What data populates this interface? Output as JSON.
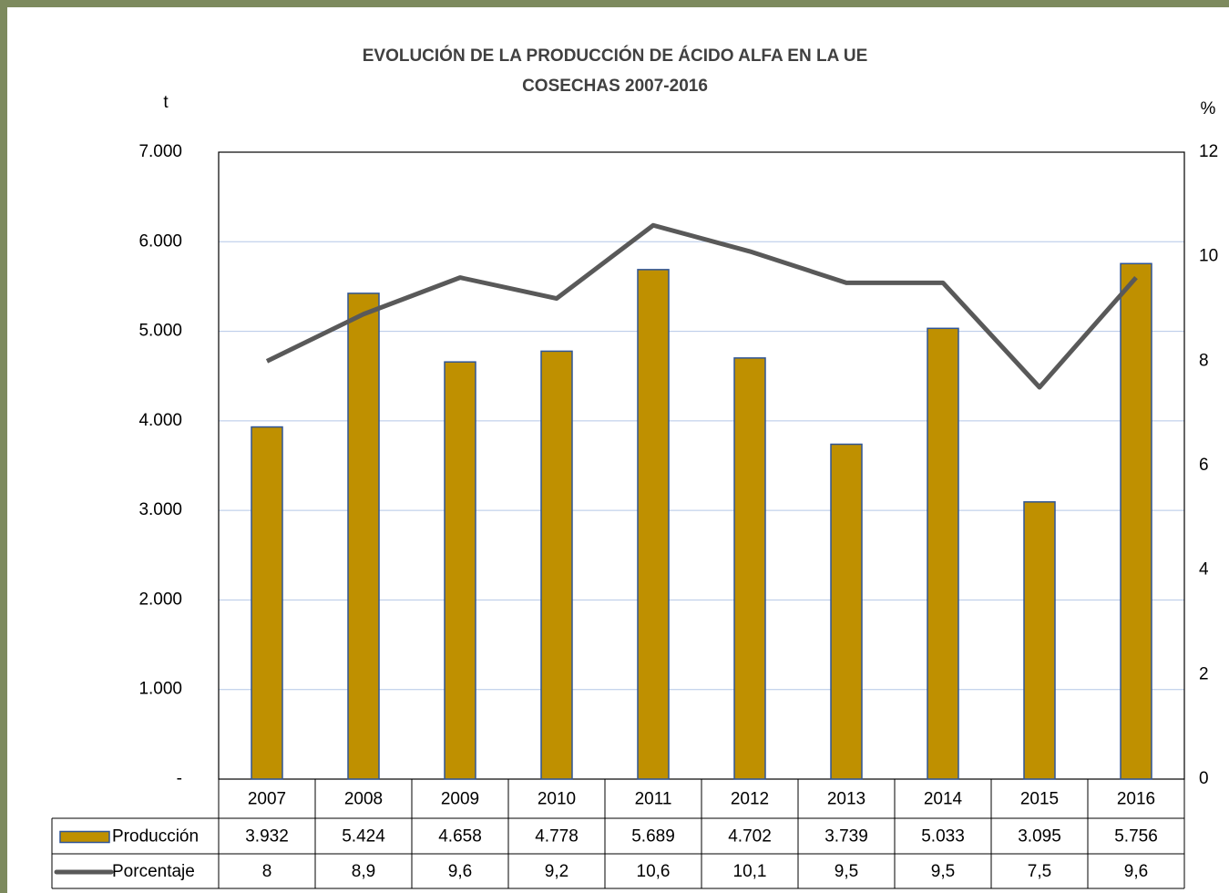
{
  "chart_data": {
    "type": "bar",
    "title": "EVOLUCIÓN DE LA PRODUCCIÓN DE ÁCIDO ALFA EN LA UE",
    "subtitle": "COSECHAS 2007-2016",
    "y_label": "t",
    "y2_label": "%",
    "categories": [
      "2007",
      "2008",
      "2009",
      "2010",
      "2011",
      "2012",
      "2013",
      "2014",
      "2015",
      "2016"
    ],
    "series": [
      {
        "name": "Producción",
        "type": "bar",
        "color": "#bf9000",
        "values": [
          3932,
          5424,
          4658,
          4778,
          5689,
          4702,
          3739,
          5033,
          3095,
          5756
        ],
        "value_labels": [
          "3.932",
          "5.424",
          "4.658",
          "4.778",
          "5.689",
          "4.702",
          "3.739",
          "5.033",
          "3.095",
          "5.756"
        ]
      },
      {
        "name": "Porcentaje",
        "type": "line",
        "axis": "y2",
        "color": "#595959",
        "values": [
          8,
          8.9,
          9.6,
          9.2,
          10.6,
          10.1,
          9.5,
          9.5,
          7.5,
          9.6
        ],
        "value_labels": [
          "8",
          "8,9",
          "9,6",
          "9,2",
          "10,6",
          "10,1",
          "9,5",
          "9,5",
          "7,5",
          "9,6"
        ]
      }
    ],
    "ylim": [
      0,
      7000
    ],
    "yticks": [
      {
        "value": 0,
        "label": "-"
      },
      {
        "value": 1000,
        "label": "1.000"
      },
      {
        "value": 2000,
        "label": "2.000"
      },
      {
        "value": 3000,
        "label": "3.000"
      },
      {
        "value": 4000,
        "label": "4.000"
      },
      {
        "value": 5000,
        "label": "5.000"
      },
      {
        "value": 6000,
        "label": "6.000"
      },
      {
        "value": 7000,
        "label": "7.000"
      }
    ],
    "y2lim": [
      0,
      12
    ],
    "y2ticks": [
      0,
      2,
      4,
      6,
      8,
      10,
      12
    ],
    "grid": true
  }
}
